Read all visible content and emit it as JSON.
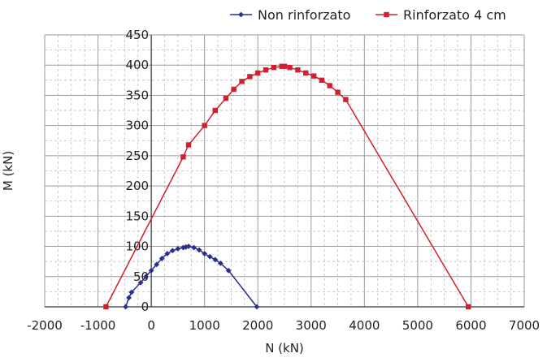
{
  "chart_data": {
    "type": "line",
    "title": "",
    "xlabel": "N (kN)",
    "ylabel": "M (kN)",
    "xlim": [
      -2000,
      7000
    ],
    "ylim": [
      0,
      450
    ],
    "xticks": [
      -2000,
      -1000,
      0,
      1000,
      2000,
      3000,
      4000,
      5000,
      6000,
      7000
    ],
    "yticks": [
      0,
      50,
      100,
      150,
      200,
      250,
      300,
      350,
      400,
      450
    ],
    "grid": "major solid, minor dashed",
    "legend_position": "top-right",
    "series": [
      {
        "name": "Non rinforzato",
        "color": "#2b2f8f",
        "marker": "diamond",
        "x": [
          -480,
          -420,
          -370,
          -200,
          -100,
          0,
          100,
          200,
          300,
          400,
          500,
          600,
          650,
          700,
          800,
          900,
          1000,
          1100,
          1200,
          1300,
          1450,
          1980
        ],
        "y": [
          0,
          15,
          24,
          40,
          50,
          60,
          70,
          80,
          88,
          93,
          96,
          98,
          99,
          100,
          98,
          94,
          88,
          83,
          78,
          72,
          60,
          0
        ]
      },
      {
        "name": "Rinforzato 4 cm",
        "color": "#d0202e",
        "marker": "square",
        "x": [
          -850,
          600,
          700,
          1000,
          1200,
          1400,
          1550,
          1700,
          1850,
          2000,
          2150,
          2300,
          2450,
          2500,
          2600,
          2750,
          2900,
          3050,
          3200,
          3350,
          3500,
          3650,
          5950
        ],
        "y": [
          0,
          248,
          268,
          300,
          325,
          345,
          360,
          373,
          381,
          387,
          392,
          396,
          398,
          398,
          396,
          392,
          387,
          382,
          375,
          366,
          355,
          343,
          0
        ]
      }
    ]
  }
}
